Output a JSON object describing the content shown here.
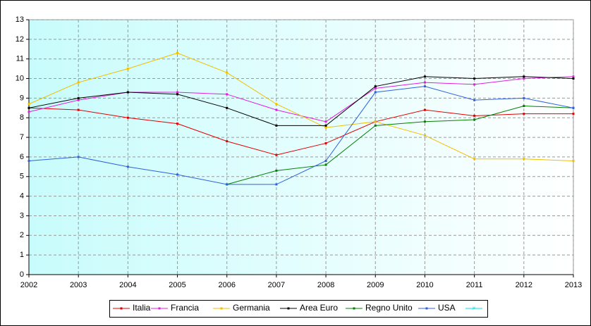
{
  "chart_data": {
    "type": "line",
    "x": [
      2002,
      2003,
      2004,
      2005,
      2006,
      2007,
      2008,
      2009,
      2010,
      2011,
      2012,
      2013
    ],
    "xlim": [
      2002,
      2013
    ],
    "xticks": [
      2002,
      2003,
      2004,
      2005,
      2006,
      2007,
      2008,
      2009,
      2010,
      2011,
      2012,
      2013
    ],
    "ylim": [
      0,
      13
    ],
    "yticks": [
      0,
      1,
      2,
      3,
      4,
      5,
      6,
      7,
      8,
      9,
      10,
      11,
      12,
      13
    ],
    "grid": true,
    "legend": "bottom",
    "series": [
      {
        "name": "Italia",
        "color": "#e00000",
        "values": [
          8.5,
          8.4,
          8.0,
          7.7,
          6.8,
          6.1,
          6.7,
          7.8,
          8.4,
          8.1,
          8.2,
          8.2
        ]
      },
      {
        "name": "Francia",
        "color": "#e020e0",
        "values": [
          8.3,
          8.9,
          9.3,
          9.3,
          9.2,
          8.4,
          7.8,
          9.5,
          9.8,
          9.7,
          10.0,
          10.1
        ]
      },
      {
        "name": "Germania",
        "color": "#f0c000",
        "values": [
          8.7,
          9.8,
          10.5,
          11.3,
          10.3,
          8.7,
          7.5,
          7.8,
          7.1,
          5.9,
          5.9,
          5.8
        ]
      },
      {
        "name": "Area Euro",
        "color": "#000000",
        "values": [
          8.5,
          9.0,
          9.3,
          9.2,
          8.5,
          7.6,
          7.6,
          9.6,
          10.1,
          10.0,
          10.1,
          10.0
        ]
      },
      {
        "name": "Regno Unito",
        "color": "#008000",
        "values": [
          null,
          null,
          null,
          null,
          4.6,
          5.3,
          5.6,
          7.6,
          7.8,
          7.9,
          8.6,
          8.5
        ]
      },
      {
        "name": "USA",
        "color": "#3060e0",
        "values": [
          5.8,
          6.0,
          5.5,
          5.1,
          4.6,
          4.6,
          5.8,
          9.3,
          9.6,
          8.9,
          9.0,
          8.5
        ]
      }
    ]
  }
}
